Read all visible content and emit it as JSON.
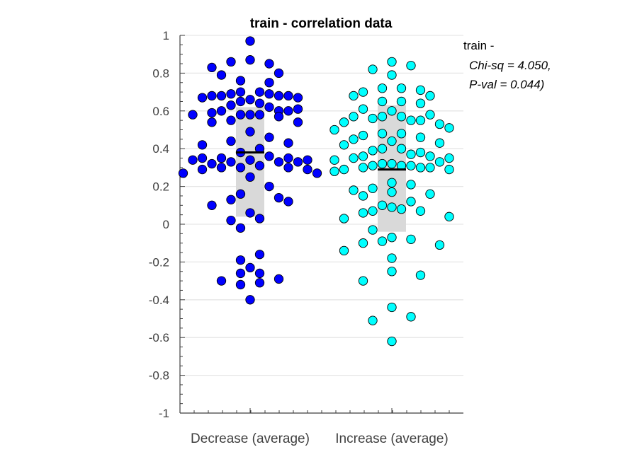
{
  "chart_data": {
    "type": "scatter",
    "title": "train - correlation data",
    "categories": [
      "Decrease (average)",
      "Increase (average)"
    ],
    "ylim": [
      -1,
      1
    ],
    "yticks": [
      "1",
      "0.8",
      "0.6",
      "0.4",
      "0.2",
      "0",
      "-0.2",
      "-0.4",
      "-0.6",
      "-0.8",
      "-1"
    ],
    "grid": true,
    "annotation": {
      "line1": "train -",
      "line2": "Chi-sq = 4.050,",
      "line3": "P-val = 0.044)"
    },
    "colors": {
      "decrease": "#0000ff",
      "increase": "#00ffff",
      "box": "#d9d9d9",
      "grid": "#e6e6e6",
      "axis": "#404040"
    },
    "series": [
      {
        "category": "Decrease (average)",
        "mean": 0.38,
        "q1": 0.04,
        "q3": 0.62,
        "points": [
          {
            "y": 0.97,
            "o": 0
          },
          {
            "y": 0.87,
            "o": 0
          },
          {
            "y": 0.86,
            "o": -2
          },
          {
            "y": 0.85,
            "o": 2
          },
          {
            "y": 0.83,
            "o": -4
          },
          {
            "y": 0.8,
            "o": 3
          },
          {
            "y": 0.79,
            "o": -3
          },
          {
            "y": 0.76,
            "o": -1
          },
          {
            "y": 0.75,
            "o": 2
          },
          {
            "y": 0.7,
            "o": -1
          },
          {
            "y": 0.7,
            "o": 1
          },
          {
            "y": 0.69,
            "o": -2
          },
          {
            "y": 0.69,
            "o": 2
          },
          {
            "y": 0.68,
            "o": -3
          },
          {
            "y": 0.68,
            "o": 3
          },
          {
            "y": 0.68,
            "o": -4
          },
          {
            "y": 0.68,
            "o": 4
          },
          {
            "y": 0.67,
            "o": -5
          },
          {
            "y": 0.67,
            "o": 5
          },
          {
            "y": 0.66,
            "o": 0
          },
          {
            "y": 0.65,
            "o": -1
          },
          {
            "y": 0.64,
            "o": 1
          },
          {
            "y": 0.63,
            "o": -2
          },
          {
            "y": 0.62,
            "o": 2
          },
          {
            "y": 0.61,
            "o": 5
          },
          {
            "y": 0.6,
            "o": -3
          },
          {
            "y": 0.6,
            "o": 3
          },
          {
            "y": 0.6,
            "o": 4
          },
          {
            "y": 0.59,
            "o": -4
          },
          {
            "y": 0.58,
            "o": -6
          },
          {
            "y": 0.58,
            "o": 0
          },
          {
            "y": 0.58,
            "o": -1
          },
          {
            "y": 0.58,
            "o": 1
          },
          {
            "y": 0.57,
            "o": 3
          },
          {
            "y": 0.55,
            "o": -2
          },
          {
            "y": 0.54,
            "o": -4
          },
          {
            "y": 0.54,
            "o": 5
          },
          {
            "y": 0.49,
            "o": 0
          },
          {
            "y": 0.46,
            "o": 2
          },
          {
            "y": 0.44,
            "o": -2
          },
          {
            "y": 0.43,
            "o": 4
          },
          {
            "y": 0.42,
            "o": -5
          },
          {
            "y": 0.4,
            "o": 1
          },
          {
            "y": 0.38,
            "o": -1
          },
          {
            "y": 0.36,
            "o": 2
          },
          {
            "y": 0.35,
            "o": -3
          },
          {
            "y": 0.35,
            "o": -5
          },
          {
            "y": 0.35,
            "o": 4
          },
          {
            "y": 0.34,
            "o": -6
          },
          {
            "y": 0.34,
            "o": 6
          },
          {
            "y": 0.34,
            "o": 0
          },
          {
            "y": 0.33,
            "o": -2
          },
          {
            "y": 0.33,
            "o": 3
          },
          {
            "y": 0.33,
            "o": 5
          },
          {
            "y": 0.32,
            "o": -4
          },
          {
            "y": 0.31,
            "o": 1
          },
          {
            "y": 0.3,
            "o": -3
          },
          {
            "y": 0.3,
            "o": -1
          },
          {
            "y": 0.3,
            "o": 4
          },
          {
            "y": 0.29,
            "o": 6
          },
          {
            "y": 0.29,
            "o": -5
          },
          {
            "y": 0.27,
            "o": -7
          },
          {
            "y": 0.27,
            "o": 7
          },
          {
            "y": 0.25,
            "o": 0
          },
          {
            "y": 0.2,
            "o": 2
          },
          {
            "y": 0.16,
            "o": -1
          },
          {
            "y": 0.14,
            "o": 3
          },
          {
            "y": 0.13,
            "o": -2
          },
          {
            "y": 0.12,
            "o": 4
          },
          {
            "y": 0.1,
            "o": -4
          },
          {
            "y": 0.06,
            "o": 0
          },
          {
            "y": 0.03,
            "o": 1
          },
          {
            "y": 0.02,
            "o": -2
          },
          {
            "y": -0.02,
            "o": -1
          },
          {
            "y": -0.16,
            "o": 1
          },
          {
            "y": -0.19,
            "o": -1
          },
          {
            "y": -0.23,
            "o": 0
          },
          {
            "y": -0.26,
            "o": -1
          },
          {
            "y": -0.26,
            "o": 1
          },
          {
            "y": -0.29,
            "o": 3
          },
          {
            "y": -0.3,
            "o": -3
          },
          {
            "y": -0.31,
            "o": 1
          },
          {
            "y": -0.32,
            "o": -1
          },
          {
            "y": -0.4,
            "o": 0
          }
        ]
      },
      {
        "category": "Increase (average)",
        "mean": 0.29,
        "q1": -0.04,
        "q3": 0.63,
        "points": [
          {
            "y": 0.86,
            "o": 0
          },
          {
            "y": 0.84,
            "o": 2
          },
          {
            "y": 0.82,
            "o": -2
          },
          {
            "y": 0.79,
            "o": 0
          },
          {
            "y": 0.72,
            "o": -1
          },
          {
            "y": 0.72,
            "o": 1
          },
          {
            "y": 0.71,
            "o": 3
          },
          {
            "y": 0.7,
            "o": -3
          },
          {
            "y": 0.68,
            "o": -4
          },
          {
            "y": 0.68,
            "o": 4
          },
          {
            "y": 0.65,
            "o": -1
          },
          {
            "y": 0.65,
            "o": 1
          },
          {
            "y": 0.64,
            "o": 3
          },
          {
            "y": 0.61,
            "o": -3
          },
          {
            "y": 0.6,
            "o": 0
          },
          {
            "y": 0.58,
            "o": 4
          },
          {
            "y": 0.57,
            "o": -4
          },
          {
            "y": 0.57,
            "o": -1
          },
          {
            "y": 0.57,
            "o": 1
          },
          {
            "y": 0.56,
            "o": -2
          },
          {
            "y": 0.55,
            "o": 3
          },
          {
            "y": 0.55,
            "o": 2
          },
          {
            "y": 0.54,
            "o": -5
          },
          {
            "y": 0.53,
            "o": 5
          },
          {
            "y": 0.51,
            "o": 6
          },
          {
            "y": 0.5,
            "o": -6
          },
          {
            "y": 0.48,
            "o": -1
          },
          {
            "y": 0.48,
            "o": 1
          },
          {
            "y": 0.47,
            "o": -3
          },
          {
            "y": 0.46,
            "o": 3
          },
          {
            "y": 0.45,
            "o": -4
          },
          {
            "y": 0.44,
            "o": 0
          },
          {
            "y": 0.43,
            "o": 5
          },
          {
            "y": 0.42,
            "o": -5
          },
          {
            "y": 0.4,
            "o": -1
          },
          {
            "y": 0.4,
            "o": 1
          },
          {
            "y": 0.39,
            "o": -2
          },
          {
            "y": 0.38,
            "o": 3
          },
          {
            "y": 0.37,
            "o": 2
          },
          {
            "y": 0.36,
            "o": -3
          },
          {
            "y": 0.36,
            "o": 4
          },
          {
            "y": 0.35,
            "o": -4
          },
          {
            "y": 0.35,
            "o": 6
          },
          {
            "y": 0.34,
            "o": -6
          },
          {
            "y": 0.33,
            "o": 5
          },
          {
            "y": 0.32,
            "o": 0
          },
          {
            "y": 0.32,
            "o": -1
          },
          {
            "y": 0.31,
            "o": 1
          },
          {
            "y": 0.31,
            "o": -2
          },
          {
            "y": 0.31,
            "o": 2
          },
          {
            "y": 0.3,
            "o": 3
          },
          {
            "y": 0.3,
            "o": 4
          },
          {
            "y": 0.3,
            "o": -3
          },
          {
            "y": 0.29,
            "o": -5
          },
          {
            "y": 0.29,
            "o": 6
          },
          {
            "y": 0.28,
            "o": -6
          },
          {
            "y": 0.22,
            "o": 0
          },
          {
            "y": 0.21,
            "o": 2
          },
          {
            "y": 0.19,
            "o": -2
          },
          {
            "y": 0.18,
            "o": -4
          },
          {
            "y": 0.17,
            "o": 0
          },
          {
            "y": 0.16,
            "o": 4
          },
          {
            "y": 0.15,
            "o": -3
          },
          {
            "y": 0.12,
            "o": 2
          },
          {
            "y": 0.1,
            "o": -1
          },
          {
            "y": 0.09,
            "o": 0
          },
          {
            "y": 0.08,
            "o": 1
          },
          {
            "y": 0.07,
            "o": 3
          },
          {
            "y": 0.07,
            "o": -2
          },
          {
            "y": 0.06,
            "o": -3
          },
          {
            "y": 0.04,
            "o": 6
          },
          {
            "y": 0.03,
            "o": -5
          },
          {
            "y": -0.03,
            "o": -2
          },
          {
            "y": -0.07,
            "o": 0
          },
          {
            "y": -0.08,
            "o": 2
          },
          {
            "y": -0.09,
            "o": -1
          },
          {
            "y": -0.1,
            "o": -3
          },
          {
            "y": -0.11,
            "o": 5
          },
          {
            "y": -0.14,
            "o": -5
          },
          {
            "y": -0.18,
            "o": 0
          },
          {
            "y": -0.25,
            "o": 0
          },
          {
            "y": -0.27,
            "o": 3
          },
          {
            "y": -0.3,
            "o": -3
          },
          {
            "y": -0.44,
            "o": 0
          },
          {
            "y": -0.49,
            "o": 2
          },
          {
            "y": -0.51,
            "o": -2
          },
          {
            "y": -0.62,
            "o": 0
          }
        ]
      }
    ]
  }
}
